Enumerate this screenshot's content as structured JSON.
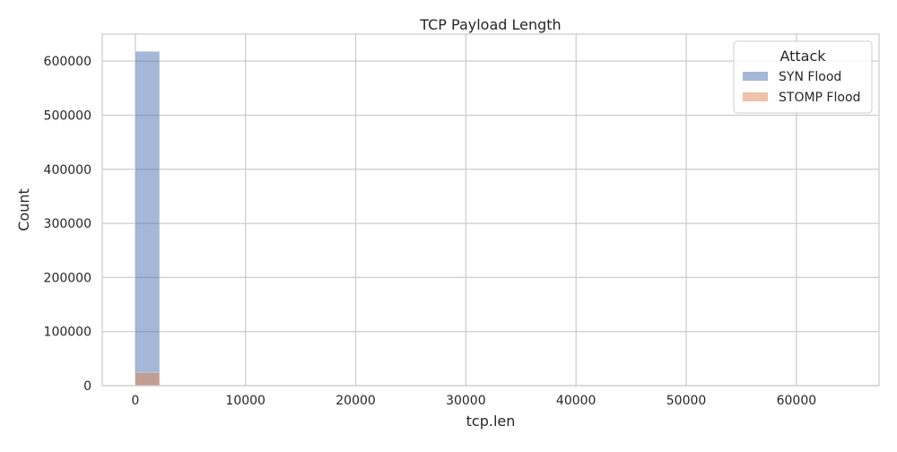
{
  "chart_data": {
    "type": "histogram",
    "title": "TCP Payload Length",
    "xlabel": "tcp.len",
    "ylabel": "Count",
    "xlim": [
      -3000,
      67500
    ],
    "ylim": [
      0,
      650000
    ],
    "xticks": [
      0,
      10000,
      20000,
      30000,
      40000,
      50000,
      60000
    ],
    "yticks": [
      0,
      100000,
      200000,
      300000,
      400000,
      500000,
      600000
    ],
    "bin_edges": [
      0,
      2200
    ],
    "grid": true,
    "legend": {
      "title": "Attack",
      "placement": "top-right"
    },
    "series": [
      {
        "name": "SYN Flood",
        "color": "#4c72b0",
        "opacity": 0.5,
        "values": [
          618000
        ]
      },
      {
        "name": "STOMP Flood",
        "color": "#dd8452",
        "opacity": 0.5,
        "values": [
          24000
        ]
      }
    ]
  }
}
